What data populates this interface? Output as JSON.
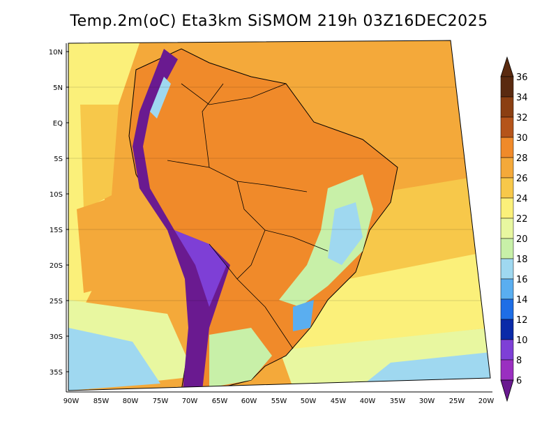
{
  "title": "Temp.2m(oC) Eta3km SiSMOM 219h 03Z16DEC2025",
  "map": {
    "lat_labels": [
      "10N",
      "5N",
      "EQ",
      "5S",
      "10S",
      "15S",
      "20S",
      "25S",
      "30S",
      "35S"
    ],
    "lon_labels": [
      "90W",
      "85W",
      "80W",
      "75W",
      "70W",
      "65W",
      "60W",
      "55W",
      "50W",
      "45W",
      "40W",
      "35W",
      "30W",
      "25W",
      "20W"
    ]
  },
  "colorbar": {
    "labels": [
      "36",
      "34",
      "32",
      "30",
      "28",
      "26",
      "24",
      "22",
      "20",
      "18",
      "16",
      "14",
      "12",
      "10",
      "8",
      "6"
    ],
    "colors": [
      "#5a2a10",
      "#8b3f12",
      "#b5541a",
      "#d9661c",
      "#f08a2a",
      "#f4a93a",
      "#f7c84a",
      "#fbf07a",
      "#e8f7a0",
      "#c8f0a8",
      "#9fd8f0",
      "#5aaef0",
      "#1e6ee6",
      "#0a2aa8",
      "#1a1ad0",
      "#7e3fd6",
      "#9a2fc0",
      "#6a1a90"
    ]
  }
}
